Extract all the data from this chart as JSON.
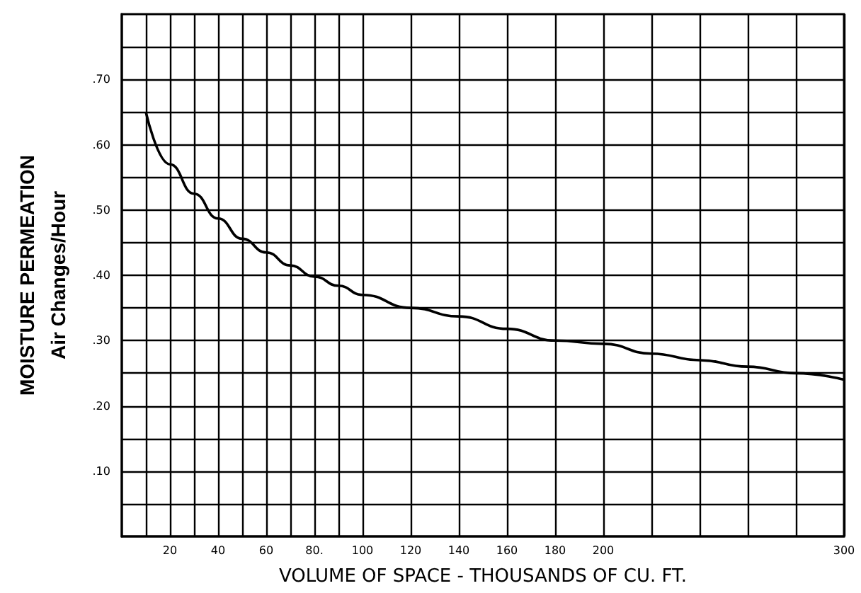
{
  "chart_data": {
    "type": "line",
    "xlabel": "VOLUME OF SPACE - THOUSANDS OF CU. FT.",
    "ylabel": "MOISTURE PERMEATION\nAir Changes/Hour",
    "x": [
      10,
      20,
      30,
      40,
      50,
      60,
      70,
      80,
      90,
      100,
      120,
      140,
      160,
      180,
      200,
      220,
      240,
      260,
      280,
      300
    ],
    "series": [
      {
        "color": "#000000",
        "values": [
          0.65,
          0.57,
          0.525,
          0.487,
          0.456,
          0.435,
          0.415,
          0.398,
          0.384,
          0.37,
          0.35,
          0.337,
          0.318,
          0.3,
          0.295,
          0.28,
          0.27,
          0.26,
          0.25,
          0.24
        ]
      }
    ],
    "xlim": [
      0,
      300
    ],
    "xticks": [
      {
        "value": 10,
        "label": null
      },
      20,
      {
        "value": 30,
        "label": null
      },
      40,
      {
        "value": 50,
        "label": null
      },
      60,
      {
        "value": 70,
        "label": null
      },
      {
        "value": 80,
        "label": "80."
      },
      {
        "value": 90,
        "label": null
      },
      100,
      120,
      140,
      160,
      180,
      200,
      {
        "value": 220,
        "label": null
      },
      {
        "value": 240,
        "label": null
      },
      {
        "value": 260,
        "label": null
      },
      {
        "value": 280,
        "label": null
      },
      300
    ],
    "ylim": [
      0,
      0.8
    ],
    "yticks": [
      {
        "value": 0.05,
        "label": null
      },
      {
        "value": 0.1,
        "label": ".10"
      },
      {
        "value": 0.15,
        "label": null
      },
      {
        "value": 0.2,
        "label": ".20"
      },
      {
        "value": 0.25,
        "label": null
      },
      {
        "value": 0.3,
        "label": ".30"
      },
      {
        "value": 0.35,
        "label": null
      },
      {
        "value": 0.4,
        "label": ".40"
      },
      {
        "value": 0.45,
        "label": null
      },
      {
        "value": 0.5,
        "label": ".50"
      },
      {
        "value": 0.55,
        "label": null
      },
      {
        "value": 0.6,
        "label": ".60"
      },
      {
        "value": 0.65,
        "label": null
      },
      {
        "value": 0.7,
        "label": ".70"
      },
      {
        "value": 0.75,
        "label": null
      }
    ],
    "grid": true,
    "marker": "none",
    "line_style": "solid"
  }
}
